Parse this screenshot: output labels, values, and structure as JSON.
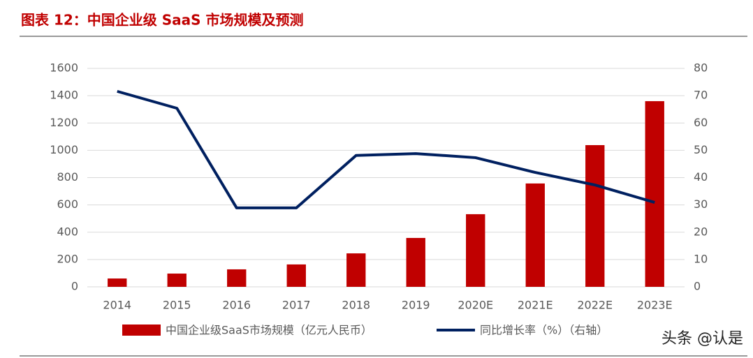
{
  "chart_data": {
    "type": "bar-line",
    "title": "图表 12：中国企业级 SaaS 市场规模及预测",
    "categories": [
      "2014",
      "2015",
      "2016",
      "2017",
      "2018",
      "2019",
      "2020E",
      "2021E",
      "2022E",
      "2023E"
    ],
    "series": [
      {
        "name": "中国企业级SaaS市场规模（亿元人民币）",
        "type": "bar",
        "color": "#c00000",
        "values": [
          61,
          97,
          128,
          164,
          245,
          358,
          532,
          757,
          1038,
          1360
        ]
      },
      {
        "name": "同比增长率（%）（右轴）",
        "type": "line",
        "axis": "y2",
        "color": "#002060",
        "values": [
          71.6,
          65.4,
          28.9,
          28.9,
          48.1,
          48.8,
          47.3,
          41.9,
          37.3,
          30.9
        ]
      }
    ],
    "ylim": [
      0,
      1600
    ],
    "yticks": [
      0,
      200,
      400,
      600,
      800,
      1000,
      1200,
      1400,
      1600
    ],
    "y2lim": [
      0,
      80
    ],
    "y2ticks": [
      0,
      10,
      20,
      30,
      40,
      50,
      60,
      70,
      80
    ],
    "grid": true
  },
  "watermark": "头条 @认是"
}
